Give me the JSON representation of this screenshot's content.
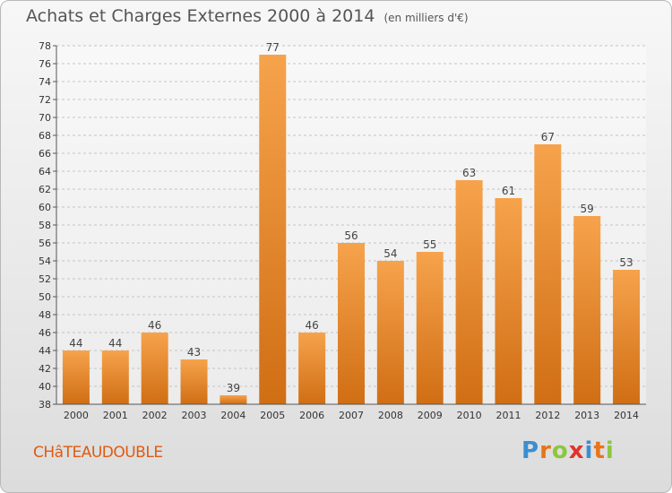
{
  "header": {
    "title": "Achats et Charges Externes 2000 à 2014",
    "subtitle": "(en milliers d'€)"
  },
  "footer": {
    "commune": "CHâTEAUDOUBLE",
    "logo": {
      "letters": [
        "P",
        "r",
        "o",
        "x",
        "i",
        "t",
        "i"
      ],
      "colors": [
        "#3a8fd1",
        "#e8741a",
        "#8cc63f",
        "#e3322b",
        "#3a8fd1",
        "#e8741a",
        "#8cc63f"
      ]
    }
  },
  "chart_data": {
    "type": "bar",
    "categories": [
      "2000",
      "2001",
      "2002",
      "2003",
      "2004",
      "2005",
      "2006",
      "2007",
      "2008",
      "2009",
      "2010",
      "2011",
      "2012",
      "2013",
      "2014"
    ],
    "values": [
      44,
      44,
      46,
      43,
      39,
      77,
      46,
      56,
      54,
      55,
      63,
      61,
      67,
      59,
      53
    ],
    "ylim": [
      38,
      78
    ],
    "yticks": [
      38,
      40,
      42,
      44,
      46,
      48,
      50,
      52,
      54,
      56,
      58,
      60,
      62,
      64,
      66,
      68,
      70,
      72,
      74,
      76,
      78
    ],
    "grid": "horizontal-dashed",
    "bar_color": "#f0932e"
  }
}
